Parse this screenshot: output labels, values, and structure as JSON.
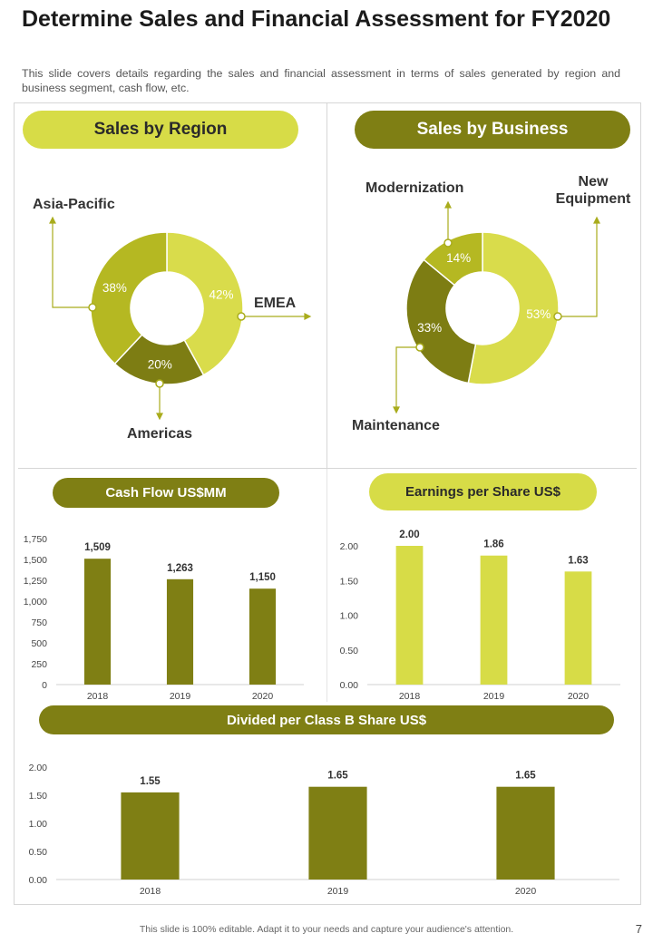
{
  "header": {
    "title": "Determine Sales and Financial Assessment for FY2020",
    "subtitle": "This slide covers details regarding the sales and financial assessment in terms of sales generated by region and business segment, cash flow, etc."
  },
  "colors": {
    "lime": "#d7dc47",
    "olive": "#7f7f14",
    "olive_mid": "#a9ac1c",
    "donut_a": "#d9dc4b",
    "donut_b": "#b5b822",
    "donut_c": "#7d7d13"
  },
  "sales_by_region": {
    "heading": "Sales by Region",
    "labels": {
      "asia_pacific": "Asia-Pacific",
      "emea": "EMEA",
      "americas": "Americas"
    }
  },
  "sales_by_business": {
    "heading": "Sales by Business",
    "labels": {
      "modernization": "Modernization",
      "new_equipment_line1": "New",
      "new_equipment_line2": "Equipment",
      "maintenance": "Maintenance"
    }
  },
  "cash_flow": {
    "heading": "Cash Flow US$MM"
  },
  "eps": {
    "heading": "Earnings per Share US$"
  },
  "dividend": {
    "heading": "Divided per Class B Share US$"
  },
  "footer": {
    "note": "This slide is 100% editable. Adapt it to your needs and capture your audience's attention.",
    "page": "7"
  },
  "chart_data": [
    {
      "id": "region",
      "type": "pie",
      "title": "Sales by Region",
      "slices": [
        {
          "name": "EMEA",
          "value": 42,
          "label": "42%",
          "color": "#d9dc4b"
        },
        {
          "name": "Americas",
          "value": 20,
          "label": "20%",
          "color": "#7d7d13"
        },
        {
          "name": "Asia-Pacific",
          "value": 38,
          "label": "38%",
          "color": "#b5b822"
        }
      ]
    },
    {
      "id": "business",
      "type": "pie",
      "title": "Sales by Business",
      "slices": [
        {
          "name": "New Equipment",
          "value": 53,
          "label": "53%",
          "color": "#d9dc4b"
        },
        {
          "name": "Maintenance",
          "value": 33,
          "label": "33%",
          "color": "#7d7d13"
        },
        {
          "name": "Modernization",
          "value": 14,
          "label": "14%",
          "color": "#b5b822"
        }
      ]
    },
    {
      "id": "cashflow",
      "type": "bar",
      "title": "Cash Flow US$MM",
      "categories": [
        "2018",
        "2019",
        "2020"
      ],
      "values": [
        1509,
        1263,
        1150
      ],
      "value_labels": [
        "1,509",
        "1,263",
        "1,150"
      ],
      "ylim": [
        0,
        1750
      ],
      "yticks": [
        0,
        250,
        500,
        750,
        1000,
        1250,
        1500,
        1750
      ],
      "ytick_labels": [
        "0",
        "250",
        "500",
        "750",
        "1,000",
        "1,250",
        "1,500",
        "1,750"
      ],
      "color": "#7f7f14",
      "grid": false
    },
    {
      "id": "eps",
      "type": "bar",
      "title": "Earnings per Share US$",
      "categories": [
        "2018",
        "2019",
        "2020"
      ],
      "values": [
        2.0,
        1.86,
        1.63
      ],
      "value_labels": [
        "2.00",
        "1.86",
        "1.63"
      ],
      "ylim": [
        0,
        2.0
      ],
      "yticks": [
        0,
        0.5,
        1.0,
        1.5,
        2.0
      ],
      "ytick_labels": [
        "0.00",
        "0.50",
        "1.00",
        "1.50",
        "2.00"
      ],
      "color": "#d7dc47",
      "grid": false
    },
    {
      "id": "dividend",
      "type": "bar",
      "title": "Divided per Class B Share US$",
      "categories": [
        "2018",
        "2019",
        "2020"
      ],
      "values": [
        1.55,
        1.65,
        1.65
      ],
      "value_labels": [
        "1.55",
        "1.65",
        "1.65"
      ],
      "ylim": [
        0,
        2.0
      ],
      "yticks": [
        0,
        0.5,
        1.0,
        1.5,
        2.0
      ],
      "ytick_labels": [
        "0.00",
        "0.50",
        "1.00",
        "1.50",
        "2.00"
      ],
      "color": "#7f7f14",
      "grid": false
    }
  ]
}
